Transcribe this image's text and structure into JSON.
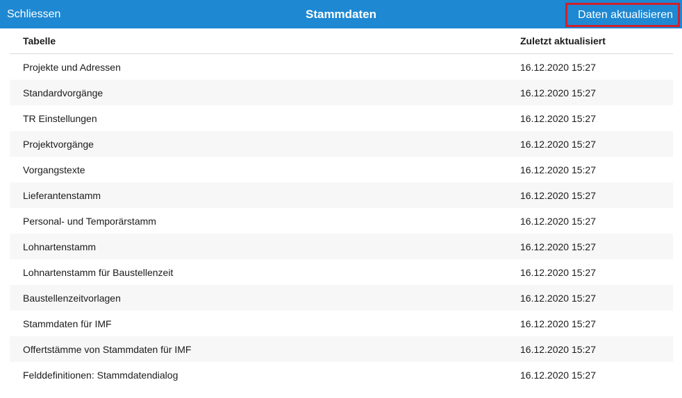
{
  "header": {
    "close_label": "Schliessen",
    "title": "Stammdaten",
    "refresh_label": "Daten aktualisieren"
  },
  "table": {
    "columns": [
      "Tabelle",
      "Zuletzt aktualisiert"
    ],
    "rows": [
      {
        "name": "Projekte und Adressen",
        "updated": "16.12.2020 15:27"
      },
      {
        "name": "Standardvorgänge",
        "updated": "16.12.2020 15:27"
      },
      {
        "name": "TR Einstellungen",
        "updated": "16.12.2020 15:27"
      },
      {
        "name": "Projektvorgänge",
        "updated": "16.12.2020 15:27"
      },
      {
        "name": "Vorgangstexte",
        "updated": "16.12.2020 15:27"
      },
      {
        "name": "Lieferantenstamm",
        "updated": "16.12.2020 15:27"
      },
      {
        "name": "Personal- und Temporärstamm",
        "updated": "16.12.2020 15:27"
      },
      {
        "name": "Lohnartenstamm",
        "updated": "16.12.2020 15:27"
      },
      {
        "name": "Lohnartenstamm für Baustellenzeit",
        "updated": "16.12.2020 15:27"
      },
      {
        "name": "Baustellenzeitvorlagen",
        "updated": "16.12.2020 15:27"
      },
      {
        "name": "Stammdaten für IMF",
        "updated": "16.12.2020 15:27"
      },
      {
        "name": "Offertstämme von Stammdaten für IMF",
        "updated": "16.12.2020 15:27"
      },
      {
        "name": "Felddefinitionen: Stammdatendialog",
        "updated": "16.12.2020 15:27"
      }
    ]
  },
  "colors": {
    "header_bg": "#1e88d2",
    "highlight_border": "#d0202a",
    "alt_row_bg": "#f7f7f7"
  }
}
